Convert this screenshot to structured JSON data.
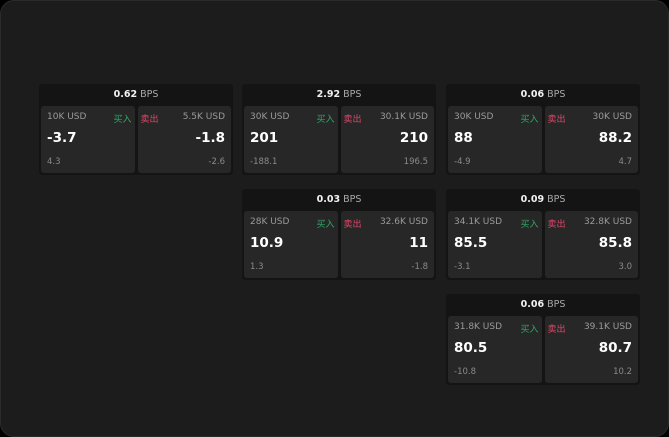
{
  "labels": {
    "buy": "买入",
    "sell": "卖出",
    "unit": "BPS"
  },
  "colors": {
    "buy": "#2ea866",
    "sell": "#e0466a"
  },
  "cards": [
    {
      "bps": "0.62",
      "buy": {
        "size": "10K USD",
        "price": "-3.7",
        "change": "4.3"
      },
      "sell": {
        "size": "5.5K USD",
        "price": "-1.8",
        "change": "-2.6"
      }
    },
    {
      "bps": "2.92",
      "buy": {
        "size": "30K USD",
        "price": "201",
        "change": "-188.1"
      },
      "sell": {
        "size": "30.1K USD",
        "price": "210",
        "change": "196.5"
      }
    },
    {
      "bps": "0.06",
      "buy": {
        "size": "30K USD",
        "price": "88",
        "change": "-4.9"
      },
      "sell": {
        "size": "30K USD",
        "price": "88.2",
        "change": "4.7"
      }
    },
    {
      "bps": "0.03",
      "buy": {
        "size": "28K USD",
        "price": "10.9",
        "change": "1.3"
      },
      "sell": {
        "size": "32.6K USD",
        "price": "11",
        "change": "-1.8"
      }
    },
    {
      "bps": "0.09",
      "buy": {
        "size": "34.1K USD",
        "price": "85.5",
        "change": "-3.1"
      },
      "sell": {
        "size": "32.8K USD",
        "price": "85.8",
        "change": "3.0"
      }
    },
    {
      "bps": "0.06",
      "buy": {
        "size": "31.8K USD",
        "price": "80.5",
        "change": "-10.8"
      },
      "sell": {
        "size": "39.1K USD",
        "price": "80.7",
        "change": "10.2"
      }
    }
  ]
}
